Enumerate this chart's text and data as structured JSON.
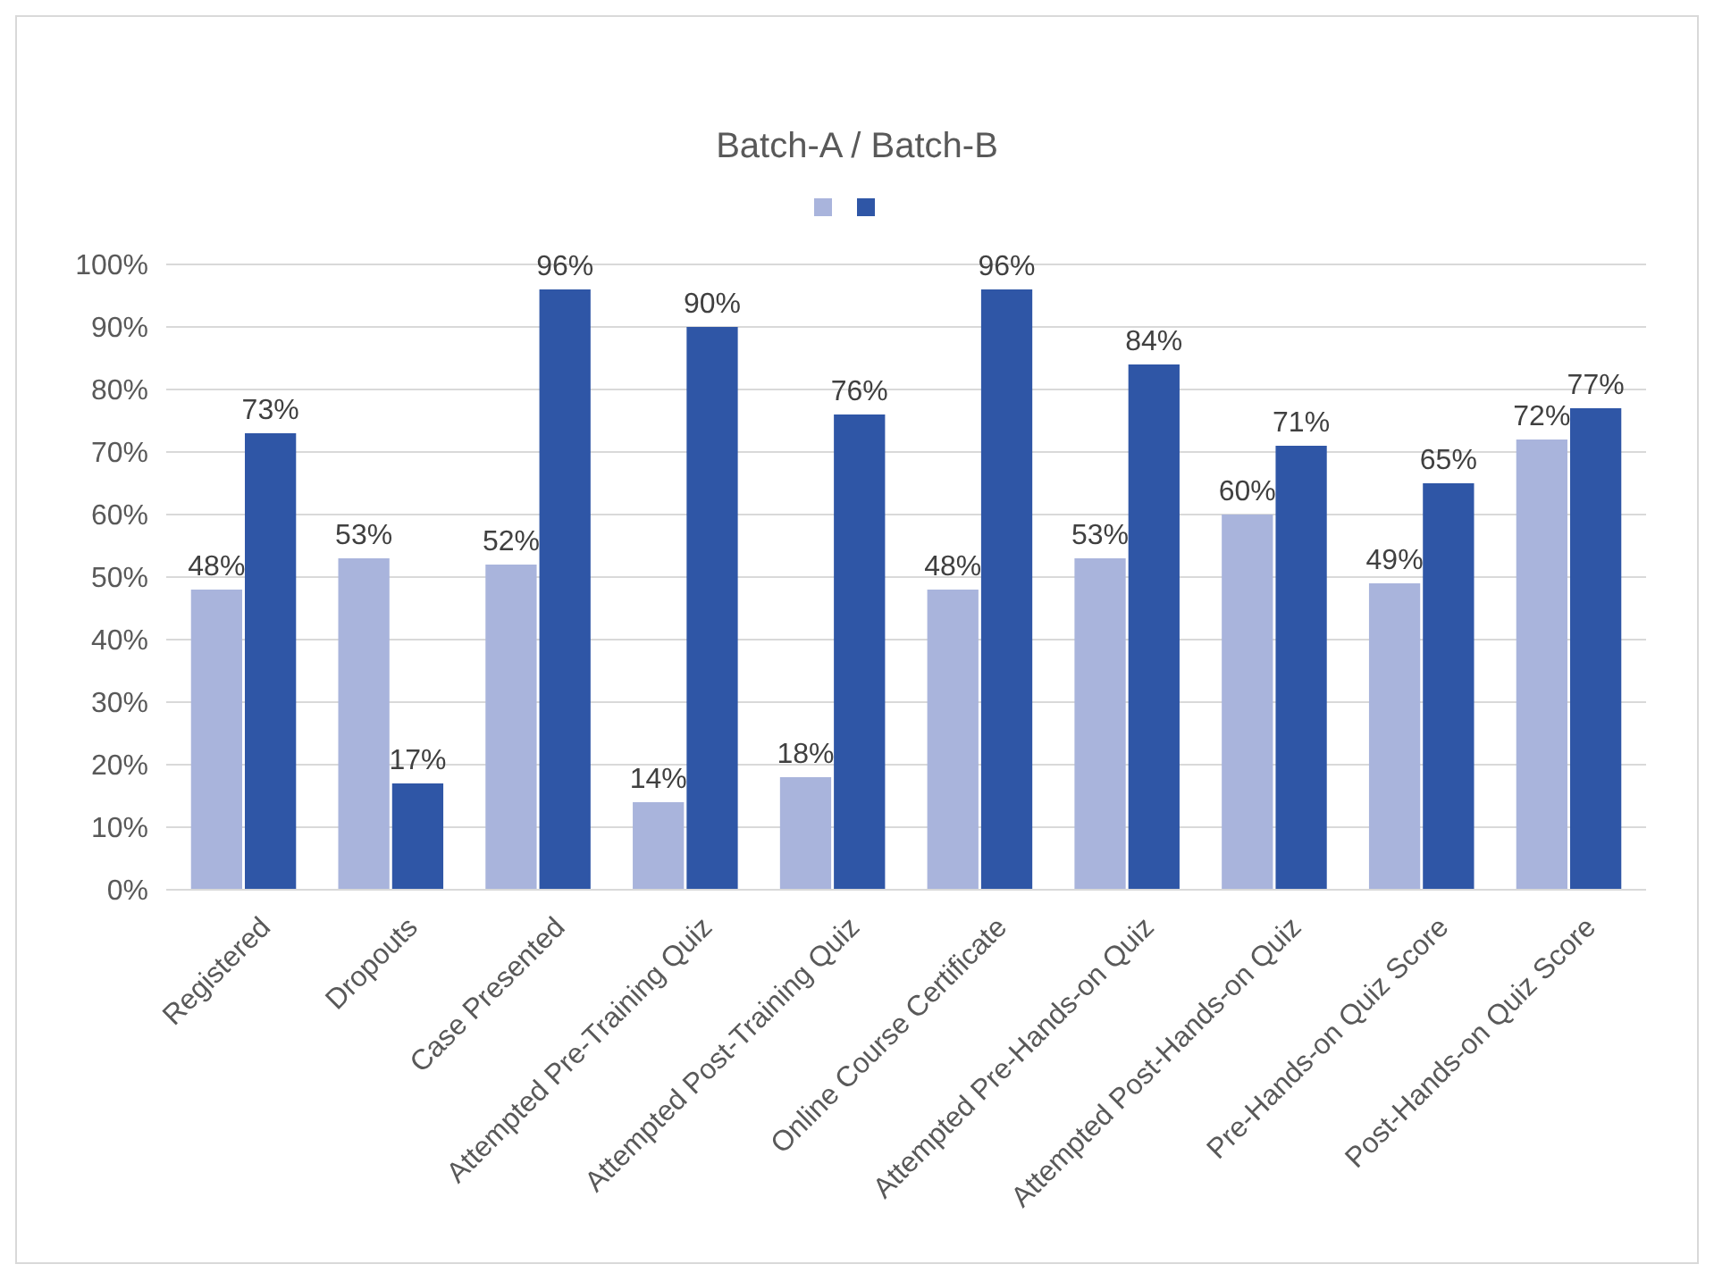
{
  "chart_data": {
    "type": "bar",
    "title": "Batch-A / Batch-B",
    "categories": [
      "Registered",
      "Dropouts",
      "Case Presented",
      "Attempted Pre-Training Quiz",
      "Attempted Post-Training Quiz",
      "Online Course Certificate",
      "Attempted Pre-Hands-on Quiz",
      "Attempted Post-Hands-on Quiz",
      "Pre-Hands-on Quiz Score",
      "Post-Hands-on Quiz Score"
    ],
    "series": [
      {
        "color": "#a9b4dc",
        "values": [
          48,
          53,
          52,
          14,
          18,
          48,
          53,
          60,
          49,
          72
        ],
        "value_labels": [
          "48%",
          "53%",
          "52%",
          "14%",
          "18%",
          "48%",
          "53%",
          "60%",
          "49%",
          "72%"
        ]
      },
      {
        "color": "#2f56a6",
        "values": [
          73,
          17,
          96,
          90,
          76,
          96,
          84,
          71,
          65,
          77
        ],
        "value_labels": [
          "73%",
          "17%",
          "96%",
          "90%",
          "76%",
          "96%",
          "84%",
          "71%",
          "65%",
          "77%"
        ]
      }
    ],
    "ylim": [
      0,
      100
    ],
    "yticks": [
      {
        "value": 0,
        "label": "0%"
      },
      {
        "value": 10,
        "label": "10%"
      },
      {
        "value": 20,
        "label": "20%"
      },
      {
        "value": 30,
        "label": "30%"
      },
      {
        "value": 40,
        "label": "40%"
      },
      {
        "value": 50,
        "label": "50%"
      },
      {
        "value": 60,
        "label": "60%"
      },
      {
        "value": 70,
        "label": "70%"
      },
      {
        "value": 80,
        "label": "80%"
      },
      {
        "value": 90,
        "label": "90%"
      },
      {
        "value": 100,
        "label": "100%"
      }
    ],
    "grid": "y"
  }
}
